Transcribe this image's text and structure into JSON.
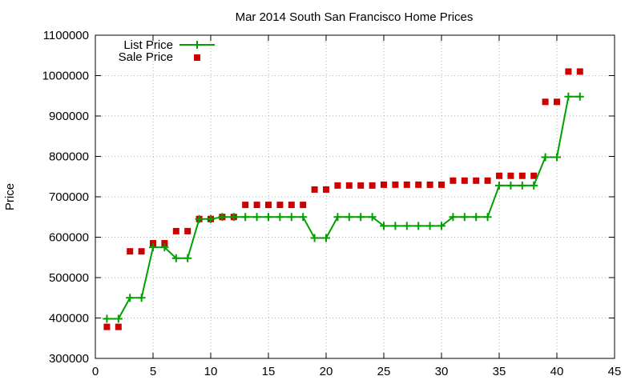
{
  "chart_data": {
    "type": "line",
    "title": "Mar 2014 South San Francisco Home Prices",
    "xlabel": "",
    "ylabel": "Price",
    "xlim": [
      0,
      45
    ],
    "ylim": [
      300000,
      1100000
    ],
    "x_ticks": [
      0,
      5,
      10,
      15,
      20,
      25,
      30,
      35,
      40,
      45
    ],
    "y_ticks": [
      300000,
      400000,
      500000,
      600000,
      700000,
      800000,
      900000,
      1000000,
      1100000
    ],
    "x_tick_labels": [
      "0",
      "5",
      "10",
      "15",
      "20",
      "25",
      "30",
      "35",
      "40",
      "45"
    ],
    "y_tick_labels": [
      "300000",
      "400000",
      "500000",
      "600000",
      "700000",
      "800000",
      "900000",
      "1000000",
      "1100000"
    ],
    "grid": true,
    "legend_position": "top-left",
    "x": [
      1,
      2,
      3,
      4,
      5,
      6,
      7,
      8,
      9,
      10,
      11,
      12,
      13,
      14,
      15,
      16,
      17,
      18,
      19,
      20,
      21,
      22,
      23,
      24,
      25,
      26,
      27,
      28,
      29,
      30,
      31,
      32,
      33,
      34,
      35,
      36,
      37,
      38,
      39,
      40,
      41,
      42
    ],
    "series": [
      {
        "name": "List Price",
        "style": "line-points",
        "color": "#00a000",
        "values": [
          398000,
          398000,
          450000,
          450000,
          575000,
          575000,
          548000,
          548000,
          645000,
          645000,
          650000,
          650000,
          650000,
          650000,
          650000,
          650000,
          650000,
          650000,
          598000,
          598000,
          650000,
          650000,
          650000,
          650000,
          628000,
          628000,
          628000,
          628000,
          628000,
          628000,
          650000,
          650000,
          650000,
          650000,
          728000,
          728000,
          728000,
          728000,
          798000,
          798000,
          948000,
          948000
        ]
      },
      {
        "name": "Sale Price",
        "style": "points",
        "color": "#cc0000",
        "values": [
          378000,
          378000,
          565000,
          565000,
          585000,
          585000,
          615000,
          615000,
          645000,
          645000,
          650000,
          650000,
          680000,
          680000,
          680000,
          680000,
          680000,
          680000,
          718000,
          718000,
          728000,
          728000,
          728000,
          728000,
          730000,
          730000,
          730000,
          730000,
          730000,
          730000,
          740000,
          740000,
          740000,
          740000,
          752000,
          752000,
          752000,
          752000,
          935000,
          935000,
          1010000,
          1010000
        ]
      }
    ]
  }
}
